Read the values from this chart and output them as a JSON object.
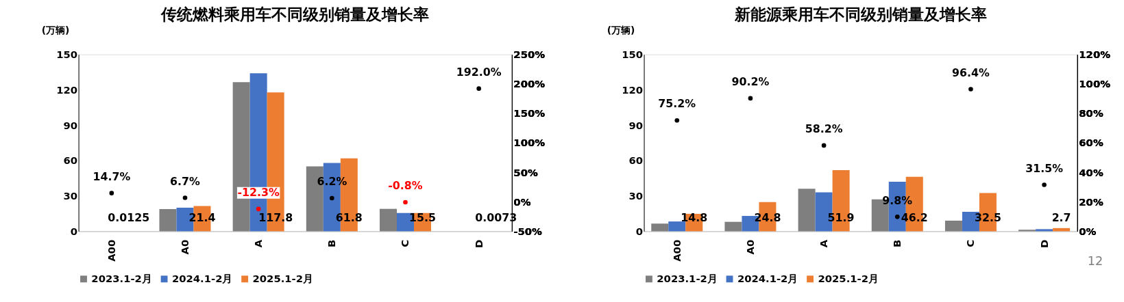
{
  "chart_data": [
    {
      "type": "bar",
      "title": "传统燃料乘用车不同级别销量及增长率",
      "ylabel": "(万辆)",
      "categories": [
        "A00",
        "A0",
        "A",
        "B",
        "C",
        "D"
      ],
      "ylim": [
        0,
        150
      ],
      "yticks": [
        0,
        30,
        60,
        90,
        120,
        150
      ],
      "y2lim": [
        -50,
        250
      ],
      "y2ticks": [
        {
          "value": -50,
          "label": "-50%"
        },
        {
          "value": 0,
          "label": "0%"
        },
        {
          "value": 50,
          "label": "50%"
        },
        {
          "value": 100,
          "label": "100%"
        },
        {
          "value": 150,
          "label": "150%"
        },
        {
          "value": 200,
          "label": "200%"
        },
        {
          "value": 250,
          "label": "250%"
        }
      ],
      "grid": false,
      "legend": "bottom",
      "series": [
        {
          "name": "2023.1-2月",
          "color": "#7f7f7f",
          "values": [
            0,
            18.8,
            126.5,
            55,
            19,
            0
          ]
        },
        {
          "name": "2024.1-2月",
          "color": "#4472c4",
          "values": [
            0,
            20,
            134,
            58,
            15.5,
            0
          ]
        },
        {
          "name": "2025.1-2月",
          "color": "#ed7d31",
          "values": [
            0.0125,
            21.4,
            117.8,
            61.8,
            15.5,
            0.0073
          ],
          "value_labels": [
            "0.0125",
            "21.4",
            "117.8",
            "61.8",
            "15.5",
            "0.0073"
          ]
        },
        {
          "type": "scatter",
          "axis": "y2",
          "marker": "circle",
          "colors": [
            "#000000",
            "#000000",
            "#ff0000",
            "#000000",
            "#ff0000",
            "#000000"
          ],
          "values": [
            14.7,
            6.7,
            -12.3,
            6.2,
            -0.8,
            192.0
          ],
          "value_labels": [
            "14.7%",
            "6.7%",
            "-12.3%",
            "6.2%",
            "-0.8%",
            "192.0%"
          ]
        }
      ]
    },
    {
      "type": "bar",
      "title": "新能源乘用车不同级别销量及增长率",
      "ylabel": "(万辆)",
      "categories": [
        "A00",
        "A0",
        "A",
        "B",
        "C",
        "D"
      ],
      "ylim": [
        0,
        150
      ],
      "yticks": [
        0,
        30,
        60,
        90,
        120,
        150
      ],
      "y2lim": [
        0,
        120
      ],
      "y2ticks": [
        {
          "value": 0,
          "label": "0%"
        },
        {
          "value": 20,
          "label": "20%"
        },
        {
          "value": 40,
          "label": "40%"
        },
        {
          "value": 60,
          "label": "60%"
        },
        {
          "value": 80,
          "label": "80%"
        },
        {
          "value": 100,
          "label": "100%"
        },
        {
          "value": 120,
          "label": "120%"
        }
      ],
      "grid": false,
      "legend": "bottom",
      "annotations": [
        "12"
      ],
      "series": [
        {
          "name": "2023.1-2月",
          "color": "#7f7f7f",
          "values": [
            6.5,
            8,
            36,
            27,
            9,
            1.3
          ]
        },
        {
          "name": "2024.1-2月",
          "color": "#4472c4",
          "values": [
            8.3,
            13,
            33,
            42,
            16.5,
            1.8
          ]
        },
        {
          "name": "2025.1-2月",
          "color": "#ed7d31",
          "values": [
            14.8,
            24.8,
            51.9,
            46.2,
            32.5,
            2.7
          ],
          "value_labels": [
            "14.8",
            "24.8",
            "51.9",
            "46.2",
            "32.5",
            "2.7"
          ]
        },
        {
          "type": "scatter",
          "axis": "y2",
          "marker": "circle",
          "color": "#000000",
          "values": [
            75.2,
            90.2,
            58.2,
            9.8,
            96.4,
            31.5
          ],
          "value_labels": [
            "75.2%",
            "90.2%",
            "58.2%",
            "9.8%",
            "96.4%",
            "31.5%"
          ]
        }
      ]
    }
  ]
}
